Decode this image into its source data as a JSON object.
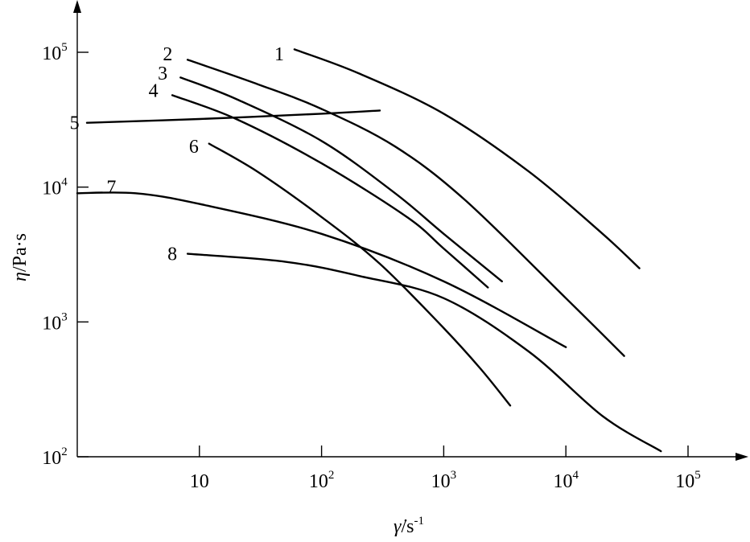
{
  "chart_data": {
    "type": "line",
    "title": "",
    "xscale": "log",
    "yscale": "log",
    "xlim": [
      1,
      100000
    ],
    "ylim": [
      100,
      100000
    ],
    "grid": false,
    "legend": "none",
    "xlabel": {
      "sym": "γ̇",
      "unit": "/s",
      "exp": "-1"
    },
    "ylabel": {
      "sym": "η",
      "unit": "/Pa·s"
    },
    "xticks": [
      {
        "value": 10,
        "base": "10",
        "exp": ""
      },
      {
        "value": 100,
        "base": "10",
        "exp": "2"
      },
      {
        "value": 1000,
        "base": "10",
        "exp": "3"
      },
      {
        "value": 10000,
        "base": "10",
        "exp": "4"
      },
      {
        "value": 100000,
        "base": "10",
        "exp": "5"
      }
    ],
    "yticks": [
      {
        "value": 100,
        "base": "10",
        "exp": "2"
      },
      {
        "value": 1000,
        "base": "10",
        "exp": "3"
      },
      {
        "value": 10000,
        "base": "10",
        "exp": "4"
      },
      {
        "value": 100000,
        "base": "10",
        "exp": "5"
      }
    ],
    "series": [
      {
        "label": "1",
        "x": [
          60,
          200,
          1000,
          5000,
          20000,
          40000
        ],
        "y": [
          105000,
          70000,
          35000,
          13000,
          4500,
          2500
        ]
      },
      {
        "label": "2",
        "x": [
          8,
          30,
          100,
          400,
          1500,
          10000,
          30000
        ],
        "y": [
          88000,
          58000,
          38000,
          20000,
          8000,
          1500,
          560
        ]
      },
      {
        "label": "3",
        "x": [
          7,
          20,
          100,
          400,
          1000,
          3000
        ],
        "y": [
          65000,
          45000,
          22000,
          9000,
          4500,
          2000
        ]
      },
      {
        "label": "4",
        "x": [
          6,
          20,
          100,
          500,
          1000,
          2300
        ],
        "y": [
          48000,
          32000,
          15000,
          6000,
          3500,
          1800
        ]
      },
      {
        "label": "5",
        "x": [
          1.2,
          10,
          100,
          300
        ],
        "y": [
          30000,
          32000,
          35000,
          37000
        ]
      },
      {
        "label": "6",
        "x": [
          12,
          30,
          100,
          300,
          1000,
          2000,
          3500
        ],
        "y": [
          21000,
          13000,
          6000,
          2700,
          900,
          450,
          240
        ]
      },
      {
        "label": "7",
        "x": [
          1,
          3,
          10,
          100,
          1000,
          10000
        ],
        "y": [
          9000,
          9000,
          7500,
          4500,
          2000,
          650
        ]
      },
      {
        "label": "8",
        "x": [
          8,
          50,
          200,
          1000,
          5000,
          20000,
          60000
        ],
        "y": [
          3200,
          2800,
          2200,
          1500,
          600,
          200,
          110
        ]
      }
    ],
    "label_positions": [
      {
        "label": "1",
        "x": 45,
        "y": 97000
      },
      {
        "label": "2",
        "x": 5.5,
        "y": 97000
      },
      {
        "label": "3",
        "x": 5,
        "y": 70000
      },
      {
        "label": "4",
        "x": 4.2,
        "y": 52000
      },
      {
        "label": "5",
        "x": 0.95,
        "y": 30000
      },
      {
        "label": "6",
        "x": 9,
        "y": 20000
      },
      {
        "label": "7",
        "x": 1.9,
        "y": 10000
      },
      {
        "label": "8",
        "x": 6,
        "y": 3200
      }
    ]
  }
}
